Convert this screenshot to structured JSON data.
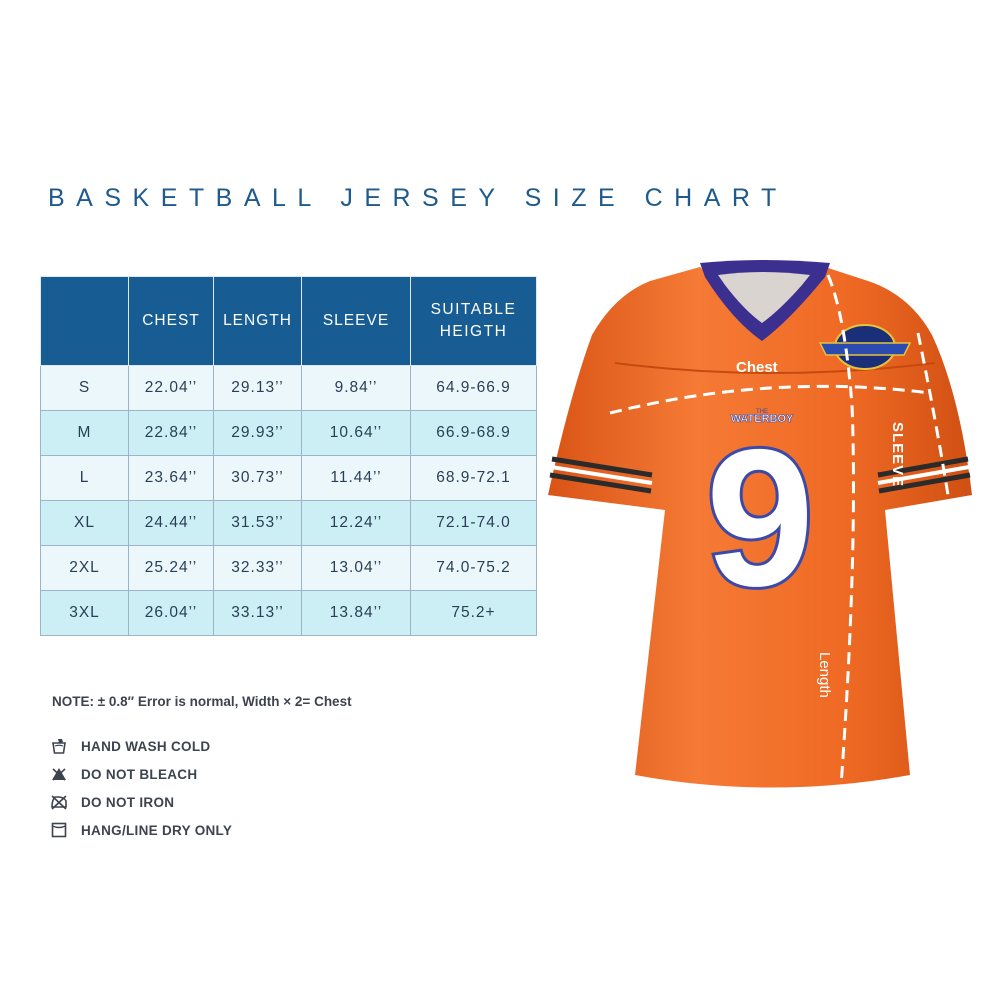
{
  "title": "BASKETBALL JERSEY SIZE CHART",
  "size_table": {
    "headers": [
      "",
      "CHEST",
      "LENGTH",
      "SLEEVE",
      "SUITABLE\nHEIGTH"
    ],
    "rows": [
      [
        "S",
        "22.04’’",
        "29.13’’",
        "9.84’’",
        "64.9-66.9"
      ],
      [
        "M",
        "22.84’’",
        "29.93’’",
        "10.64’’",
        "66.9-68.9"
      ],
      [
        "L",
        "23.64’’",
        "30.73’’",
        "11.44’’",
        "68.9-72.1"
      ],
      [
        "XL",
        "24.44’’",
        "31.53’’",
        "12.24’’",
        "72.1-74.0"
      ],
      [
        "2XL",
        "25.24’’",
        "32.33’’",
        "13.04’’",
        "74.0-75.2"
      ],
      [
        "3XL",
        "26.04’’",
        "33.13’’",
        "13.84’’",
        "75.2+"
      ]
    ]
  },
  "note": "NOTE: ± 0.8″ Error is normal, Width × 2= Chest",
  "care": [
    {
      "icon": "hand-wash-icon",
      "label": "HAND WASH COLD"
    },
    {
      "icon": "no-bleach-icon",
      "label": "DO NOT BLEACH"
    },
    {
      "icon": "no-iron-icon",
      "label": "DO NOT IRON"
    },
    {
      "icon": "line-dry-icon",
      "label": "HANG/LINE DRY ONLY"
    }
  ],
  "jersey": {
    "number": "9",
    "team_text": "WATERBOY",
    "team_prefix": "THE",
    "labels": {
      "chest": "Chest",
      "sleeve": "SLEEVE",
      "length": "Length"
    },
    "colors": {
      "body": "#f26522",
      "collar": "#3b2f8f",
      "number_fill": "#ffffff",
      "number_outline": "#3b4aa8",
      "stripe_dark": "#2b2b2b"
    }
  }
}
